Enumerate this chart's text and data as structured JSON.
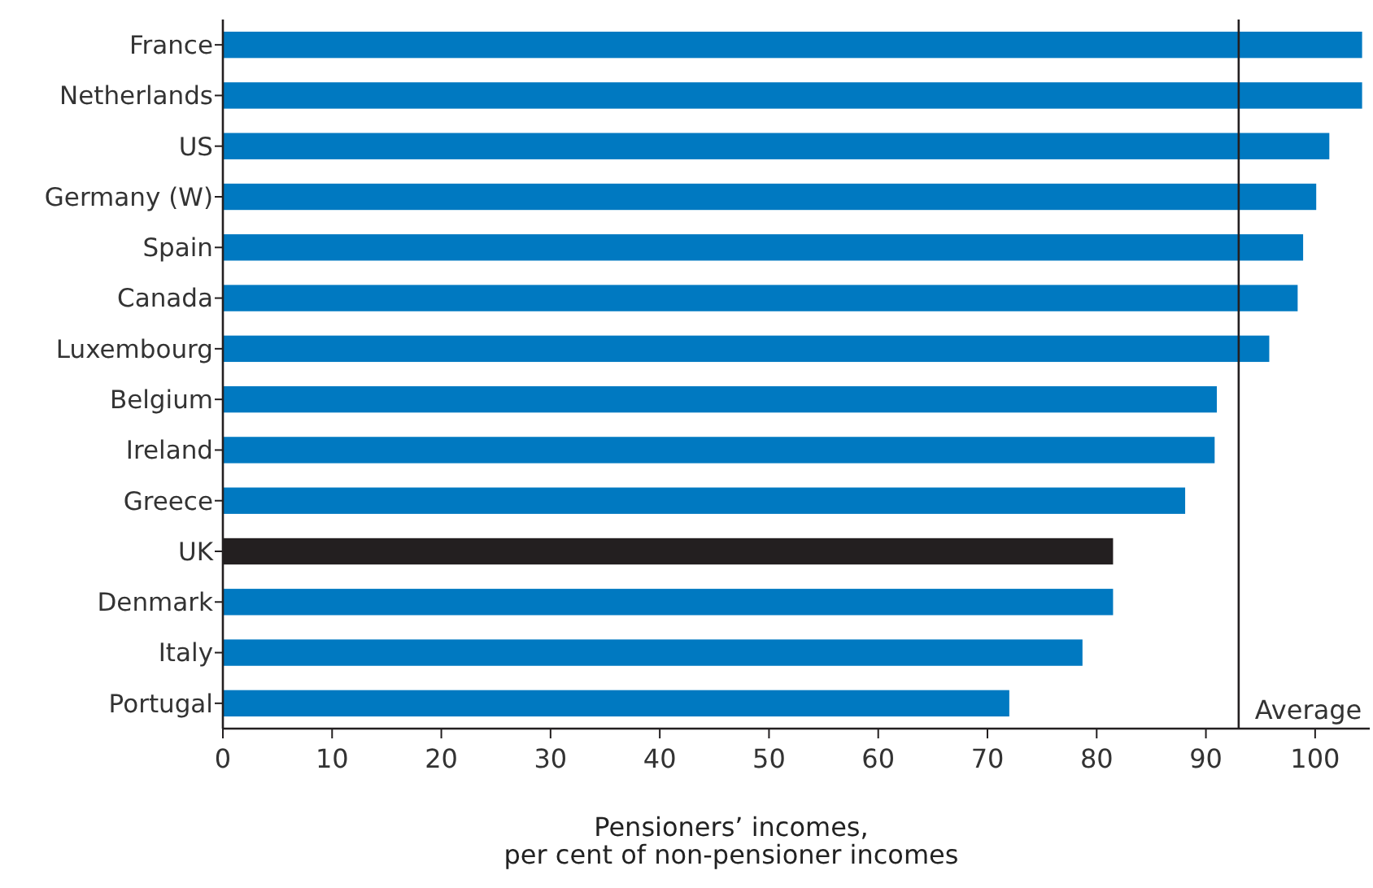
{
  "chart_data": {
    "type": "bar",
    "orientation": "horizontal",
    "xlabel": "Pensioners’ incomes,\nper cent of non-pensioner incomes",
    "categories": [
      "France",
      "Netherlands",
      "US",
      "Germany (W)",
      "Spain",
      "Canada",
      "Luxembourg",
      "Belgium",
      "Ireland",
      "Greece",
      "UK",
      "Denmark",
      "Italy",
      "Portugal"
    ],
    "values": [
      104.3,
      104.3,
      101.3,
      100.1,
      98.9,
      98.4,
      95.8,
      91.0,
      90.8,
      88.1,
      81.5,
      81.5,
      78.7,
      72.0
    ],
    "colors": [
      "#0079c1",
      "#0079c1",
      "#0079c1",
      "#0079c1",
      "#0079c1",
      "#0079c1",
      "#0079c1",
      "#0079c1",
      "#0079c1",
      "#0079c1",
      "#231f20",
      "#0079c1",
      "#0079c1",
      "#0079c1"
    ],
    "xlim": [
      0,
      105
    ],
    "xticks": [
      0,
      10,
      20,
      30,
      40,
      50,
      60,
      70,
      80,
      90,
      100
    ],
    "ref_lines": [
      {
        "axis": "x",
        "value": 93.0,
        "label": "Average",
        "color": "#231f20"
      }
    ]
  }
}
